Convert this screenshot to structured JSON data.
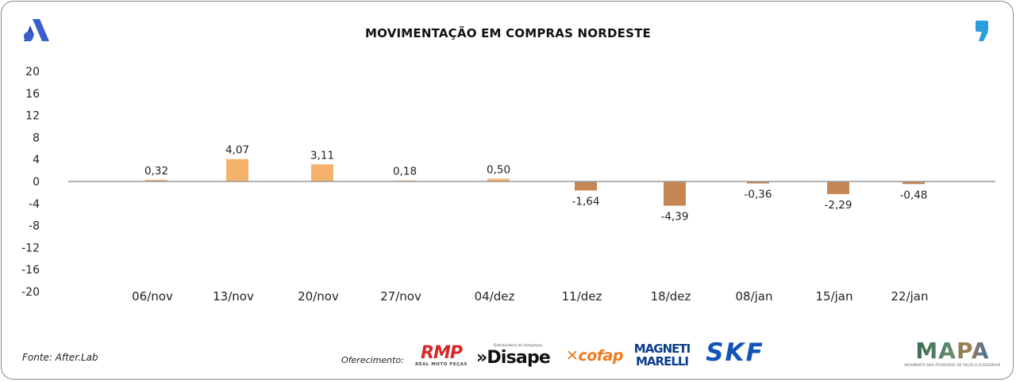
{
  "chart_data": {
    "type": "bar",
    "title": "MOVIMENTAÇÃO EM COMPRAS NORDESTE",
    "categories": [
      "06/nov",
      "13/nov",
      "20/nov",
      "27/nov",
      "04/dez",
      "11/dez",
      "18/dez",
      "08/jan",
      "15/jan",
      "22/jan"
    ],
    "values": [
      0.32,
      4.07,
      3.11,
      0.18,
      0.5,
      -1.64,
      -4.39,
      -0.36,
      -2.29,
      -0.48
    ],
    "data_labels": [
      "0,32",
      "4,07",
      "3,11",
      "0,18",
      "0,50",
      "-1,64",
      "-4,39",
      "-0,36",
      "-2,29",
      "-0,48"
    ],
    "y_ticks": [
      "20",
      "16",
      "12",
      "8",
      "4",
      "0",
      "-4",
      "-8",
      "-12",
      "-16",
      "-20"
    ],
    "ylim": [
      -20,
      20
    ],
    "positive_color": "#f5b26b",
    "negative_color": "#c68755",
    "grid": false,
    "legend": "none"
  },
  "footer": {
    "source": "Fonte: After.Lab",
    "sponsor_label": "Oferecimento:"
  },
  "sponsors": {
    "rmp": {
      "main": "RMP",
      "sub": "REAL MOTO PEÇAS"
    },
    "disape": {
      "main": "»Disape",
      "sub": "Distribuidora de Autopeças"
    },
    "cofap": {
      "main": "✕cofap"
    },
    "magneti": {
      "line1": "MAGNETI",
      "line2": "MARELLI"
    },
    "skf": {
      "main": "SKF"
    },
    "mapa": {
      "main": "MAPA",
      "sub": "MOVIMENTO DAS ATIVIDADES DE PEÇAS E ACESSÓRIOS"
    }
  },
  "colors": {
    "logo_blue": "#3a5fcd",
    "comma_blue": "#2a9fe0"
  }
}
